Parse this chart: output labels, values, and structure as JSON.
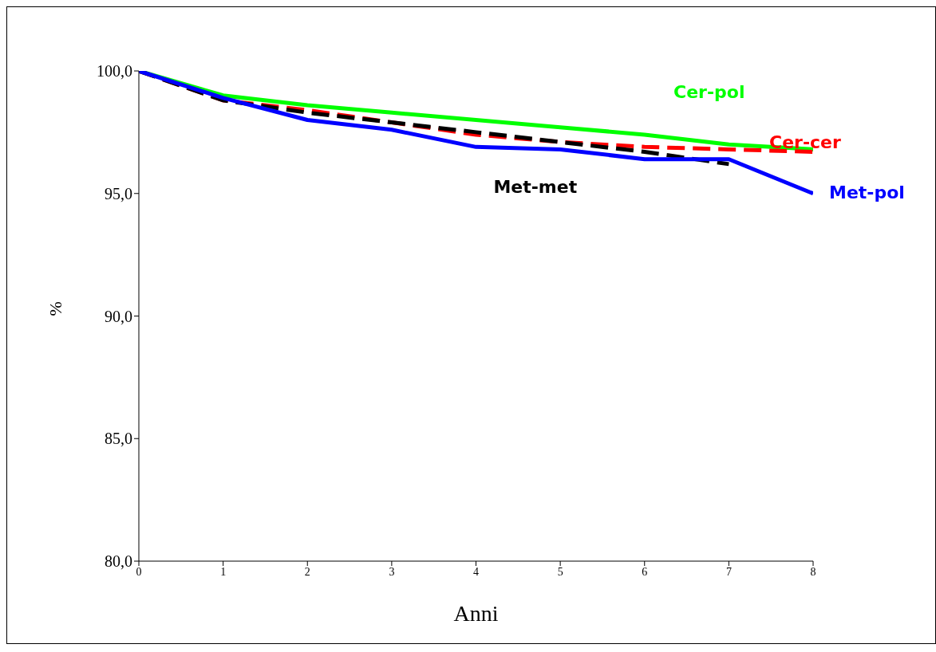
{
  "chart_data": {
    "type": "line",
    "xlabel": "Anni",
    "ylabel": "%",
    "x": [
      0,
      1,
      2,
      3,
      4,
      5,
      6,
      7,
      8
    ],
    "series": [
      {
        "name": "Cer-pol",
        "color": "#00ff00",
        "line_style": "solid",
        "values": [
          100,
          99.0,
          98.6,
          98.3,
          98.0,
          97.7,
          97.4,
          97.0,
          96.8
        ]
      },
      {
        "name": "Cer-cer",
        "color": "#ff0000",
        "line_style": "dashed",
        "values": [
          100,
          98.8,
          98.4,
          97.9,
          97.4,
          97.1,
          96.9,
          96.8,
          96.7
        ]
      },
      {
        "name": "Met-met",
        "color": "#000000",
        "line_style": "dashed",
        "values": [
          100,
          98.8,
          98.3,
          97.9,
          97.5,
          97.1,
          96.7,
          96.2,
          null
        ]
      },
      {
        "name": "Met-pol",
        "color": "#0000ff",
        "line_style": "solid",
        "values": [
          100,
          98.9,
          98.0,
          97.6,
          96.9,
          96.8,
          96.4,
          96.4,
          95.0
        ]
      }
    ],
    "xlim": [
      0,
      8
    ],
    "xticks": [
      0,
      1,
      2,
      3,
      4,
      5,
      6,
      7,
      8
    ],
    "ylim": [
      80,
      100
    ],
    "yticks": [
      {
        "value": 80,
        "label": "80,0"
      },
      {
        "value": 85,
        "label": "85,0"
      },
      {
        "value": 90,
        "label": "90,0"
      },
      {
        "value": 95,
        "label": "95,0"
      },
      {
        "value": 100,
        "label": "100,0"
      }
    ],
    "grid": false,
    "legend": false,
    "marker": "none"
  }
}
